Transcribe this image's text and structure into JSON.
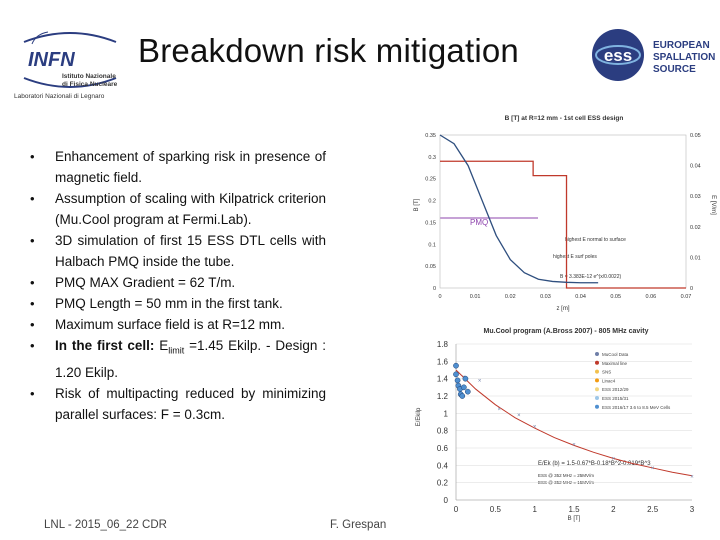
{
  "header": {
    "title": "Breakdown risk mitigation",
    "infn": {
      "name": "INFN",
      "line1": "Istituto Nazionale",
      "line2": "di Fisica Nucleare",
      "lab": "Laboratori Nazionali di Legnaro"
    },
    "ess": {
      "line1": "EUROPEAN",
      "line2": "SPALLATION",
      "line3": "SOURCE",
      "acronym": "ess"
    }
  },
  "bullets": [
    "Enhancement of sparking risk in presence of magnetic field.",
    "Assumption of scaling with Kilpatrick criterion (Mu.Cool program at Fermi.Lab).",
    "3D simulation of first 15 ESS DTL cells with Halbach PMQ inside the tube.",
    "PMQ MAX Gradient = 62 T/m.",
    "PMQ Length = 50 mm in the first tank.",
    "Maximum surface field is at R=12 mm."
  ],
  "bullet_first_cell": {
    "label": "In the first cell:",
    "text_pre": " E",
    "subscript": "limit",
    "text_post": " =1.45 Ekilp. - Design : 1.20 Ekilp."
  },
  "bullet_last": "Risk of multipacting reduced by minimizing parallel surfaces: F = 0.3cm.",
  "footer": {
    "left": "LNL - 2015_06_22 CDR",
    "right": "F. Grespan"
  },
  "chart_data": [
    {
      "type": "line",
      "title": "B [T] at R=12 mm - 1st cell ESS design",
      "xlabel": "z [m]",
      "ylabel": "B [T]",
      "ylabel_right": "E [V/m]",
      "xlim": [
        0,
        0.07
      ],
      "ylim": [
        0,
        0.35
      ],
      "ylim_right": [
        0,
        0.05
      ],
      "x_ticks": [
        "0",
        "0.01",
        "0.02",
        "0.03",
        "0.04",
        "0.05",
        "0.06",
        "0.07"
      ],
      "y_ticks": [
        "0",
        "0.05",
        "0.1",
        "0.15",
        "0.2",
        "0.25",
        "0.3",
        "0.35"
      ],
      "y_ticks_right": [
        "0",
        "0.01",
        "0.02",
        "0.03",
        "0.04",
        "0.05"
      ],
      "label_pmq": "PMQ",
      "annotations": [
        "highest E normal to surface",
        "highest E surf poles",
        "B = 3.383E-12 e^(x/0.0022)"
      ],
      "series": [
        {
          "name": "B",
          "color": "#c0392b",
          "x": [
            0,
            0.0265,
            0.0265,
            0.036,
            0.036,
            0.07
          ],
          "y": [
            0.29,
            0.29,
            0.257,
            0.257,
            0,
            0
          ]
        },
        {
          "name": "E surface",
          "color": "#2f4f7f",
          "x": [
            0,
            0.004,
            0.008,
            0.012,
            0.016,
            0.02,
            0.024,
            0.028,
            0.032,
            0.036,
            0.04,
            0.045
          ],
          "y": [
            0.35,
            0.33,
            0.28,
            0.2,
            0.12,
            0.065,
            0.035,
            0.02,
            0.015,
            0.013,
            0.012,
            0.012
          ]
        }
      ]
    },
    {
      "type": "scatter",
      "title": "Mu.Cool program (A.Bross 2007) - 805 MHz cavity",
      "xlabel": "B [T]",
      "ylabel": "E/Ekilp",
      "xlim": [
        0,
        3
      ],
      "ylim": [
        0,
        1.8
      ],
      "x_ticks": [
        "0",
        "0.5",
        "1",
        "1.5",
        "2",
        "2.5",
        "3"
      ],
      "y_ticks": [
        "0",
        "0.2",
        "0.4",
        "0.6",
        "0.8",
        "1",
        "1.2",
        "1.4",
        "1.6",
        "1.8"
      ],
      "legend": [
        "MuCool Data",
        "Maximal line",
        "SNS",
        "Linac4",
        "ESS 2012/29",
        "ESS 2015/31",
        "ESS 2016/17 3.6 to 8.5 MeV Cells"
      ],
      "formula": "E/Ek (b) = 1.5-0.67*B-0.18*B^2-0.019*B^3",
      "notes": [
        "ESS @ 352 MHz = 25MV/m",
        "ESS @ 352 MHz = 15MV/m"
      ],
      "fit": {
        "name": "Maximal line",
        "color": "#c0392b",
        "x": [
          0,
          0.25,
          0.5,
          0.75,
          1.0,
          1.25,
          1.5,
          1.75,
          2.0,
          2.25,
          2.5,
          2.75,
          3.0
        ],
        "y": [
          1.5,
          1.28,
          1.1,
          0.95,
          0.83,
          0.72,
          0.63,
          0.55,
          0.48,
          0.42,
          0.37,
          0.32,
          0.28
        ]
      },
      "points_mucool": {
        "x": [
          0.1,
          0.3,
          0.55,
          0.8,
          1.0,
          1.5,
          2.0,
          2.5,
          3.0
        ],
        "y": [
          1.42,
          1.38,
          1.05,
          0.98,
          0.85,
          0.64,
          0.48,
          0.37,
          0.27
        ]
      },
      "points_ess": {
        "x": [
          0.0,
          0.0,
          0.02,
          0.03,
          0.05,
          0.06,
          0.08,
          0.1,
          0.12,
          0.15
        ],
        "y": [
          1.55,
          1.45,
          1.38,
          1.32,
          1.28,
          1.22,
          1.2,
          1.3,
          1.4,
          1.25
        ]
      }
    }
  ]
}
